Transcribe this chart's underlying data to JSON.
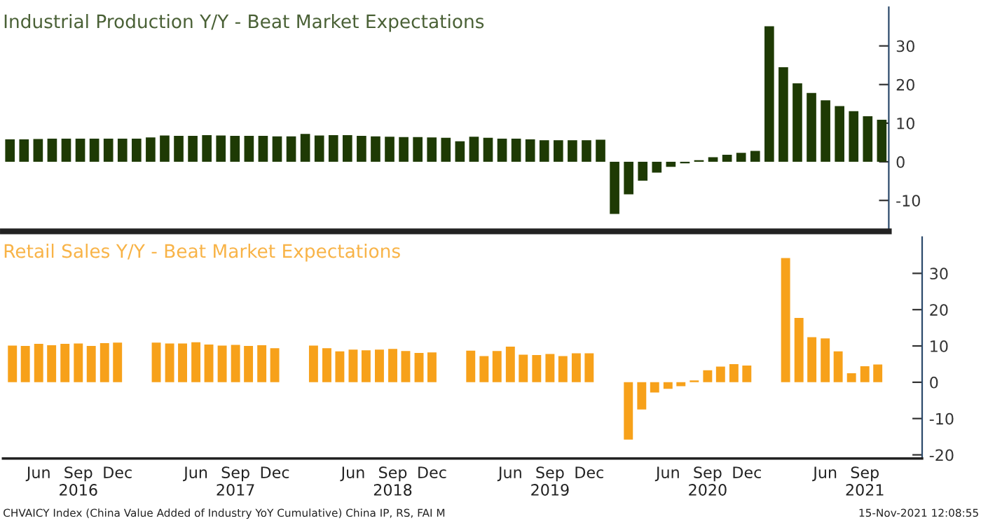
{
  "chart_data": [
    {
      "type": "bar",
      "title": "Industrial Production Y/Y - Beat Market Expectations",
      "categories": [
        null,
        null,
        null,
        null,
        null,
        null,
        null,
        null,
        null,
        null,
        null,
        null,
        null,
        null,
        null,
        null,
        null,
        null,
        null,
        null,
        null,
        null,
        null,
        null,
        null,
        null,
        null,
        null,
        null,
        null,
        null,
        null,
        null,
        null,
        null,
        null,
        null,
        null,
        null,
        null,
        null,
        null,
        null,
        null,
        null,
        null,
        null,
        null,
        null,
        null,
        null,
        null,
        null,
        null,
        null,
        null,
        null,
        null,
        null,
        null,
        null,
        null,
        null
      ],
      "series": [
        {
          "color": "#1e3a04",
          "values": [
            5.8,
            5.8,
            5.9,
            6.0,
            6.0,
            6.0,
            6.0,
            6.0,
            6.0,
            6.0,
            6.3,
            6.8,
            6.7,
            6.7,
            6.9,
            6.8,
            6.7,
            6.7,
            6.7,
            6.6,
            6.6,
            7.2,
            6.8,
            6.9,
            6.9,
            6.7,
            6.6,
            6.5,
            6.4,
            6.4,
            6.3,
            6.2,
            5.3,
            6.5,
            6.2,
            6.0,
            6.0,
            5.8,
            5.6,
            5.6,
            5.6,
            5.6,
            5.7,
            -13.5,
            -8.4,
            -4.9,
            -2.8,
            -1.3,
            -0.4,
            0.4,
            1.2,
            1.8,
            2.3,
            2.8,
            35.1,
            24.5,
            20.3,
            17.8,
            15.9,
            14.4,
            13.1,
            11.8,
            10.9
          ]
        }
      ],
      "ylim": [
        -18,
        40
      ],
      "yticks": [
        -10,
        0,
        10,
        20,
        30
      ],
      "tick_labels": "y",
      "grid": false,
      "legend": false
    },
    {
      "type": "bar",
      "title": "Retail Sales Y/Y - Beat Market Expectations",
      "x": [
        "2016-04",
        "2016-05",
        "2016-06",
        "2016-07",
        "2016-08",
        "2016-09",
        "2016-10",
        "2016-11",
        "2016-12",
        "2017-03",
        "2017-04",
        "2017-05",
        "2017-06",
        "2017-07",
        "2017-08",
        "2017-09",
        "2017-10",
        "2017-11",
        "2017-12",
        "2018-03",
        "2018-04",
        "2018-05",
        "2018-06",
        "2018-07",
        "2018-08",
        "2018-09",
        "2018-10",
        "2018-11",
        "2018-12",
        "2019-03",
        "2019-04",
        "2019-05",
        "2019-06",
        "2019-07",
        "2019-08",
        "2019-09",
        "2019-10",
        "2019-11",
        "2019-12",
        "2020-03",
        "2020-04",
        "2020-05",
        "2020-06",
        "2020-07",
        "2020-08",
        "2020-09",
        "2020-10",
        "2020-11",
        "2020-12",
        "2021-03",
        "2021-04",
        "2021-05",
        "2021-06",
        "2021-07",
        "2021-08",
        "2021-09",
        "2021-10"
      ],
      "series": [
        {
          "color": "#f7a11a",
          "values": [
            10.1,
            10.0,
            10.6,
            10.2,
            10.6,
            10.7,
            10.0,
            10.8,
            10.9,
            10.9,
            10.7,
            10.7,
            11.0,
            10.4,
            10.1,
            10.3,
            10.0,
            10.2,
            9.4,
            10.1,
            9.4,
            8.5,
            9.0,
            8.8,
            9.0,
            9.2,
            8.6,
            8.1,
            8.2,
            8.7,
            7.2,
            8.6,
            9.8,
            7.6,
            7.5,
            7.8,
            7.2,
            8.0,
            8.0,
            -15.8,
            -7.5,
            -2.8,
            -1.8,
            -1.1,
            0.5,
            3.3,
            4.3,
            5.0,
            4.6,
            34.2,
            17.7,
            12.4,
            12.1,
            8.5,
            2.5,
            4.4,
            4.9
          ]
        }
      ],
      "xlim": [
        "2016-03-10",
        "2022-01-12"
      ],
      "xticks": [
        {
          "value": "2016-06",
          "label": "Jun"
        },
        {
          "value": "2016-09",
          "label": "Sep\n2016"
        },
        {
          "value": "2016-12",
          "label": "Dec"
        },
        {
          "value": "2017-06",
          "label": "Jun"
        },
        {
          "value": "2017-09",
          "label": "Sep\n2017"
        },
        {
          "value": "2017-12",
          "label": "Dec"
        },
        {
          "value": "2018-06",
          "label": "Jun"
        },
        {
          "value": "2018-09",
          "label": "Sep\n2018"
        },
        {
          "value": "2018-12",
          "label": "Dec"
        },
        {
          "value": "2019-06",
          "label": "Jun"
        },
        {
          "value": "2019-09",
          "label": "Sep\n2019"
        },
        {
          "value": "2019-12",
          "label": "Dec"
        },
        {
          "value": "2020-06",
          "label": "Jun"
        },
        {
          "value": "2020-09",
          "label": "Sep\n2020"
        },
        {
          "value": "2020-12",
          "label": "Dec"
        },
        {
          "value": "2021-06",
          "label": "Jun"
        },
        {
          "value": "2021-09",
          "label": "Sep\n2021"
        }
      ],
      "ylim": [
        -21,
        40
      ],
      "yticks": [
        -20,
        -10,
        0,
        10,
        20,
        30
      ],
      "grid": false,
      "legend": false,
      "annotations": [
        "CHVAICY Index (China Value Added of Industry YoY Cumulative) China IP, RS, FAI M",
        "15-Nov-2021 12:08:55"
      ]
    }
  ]
}
